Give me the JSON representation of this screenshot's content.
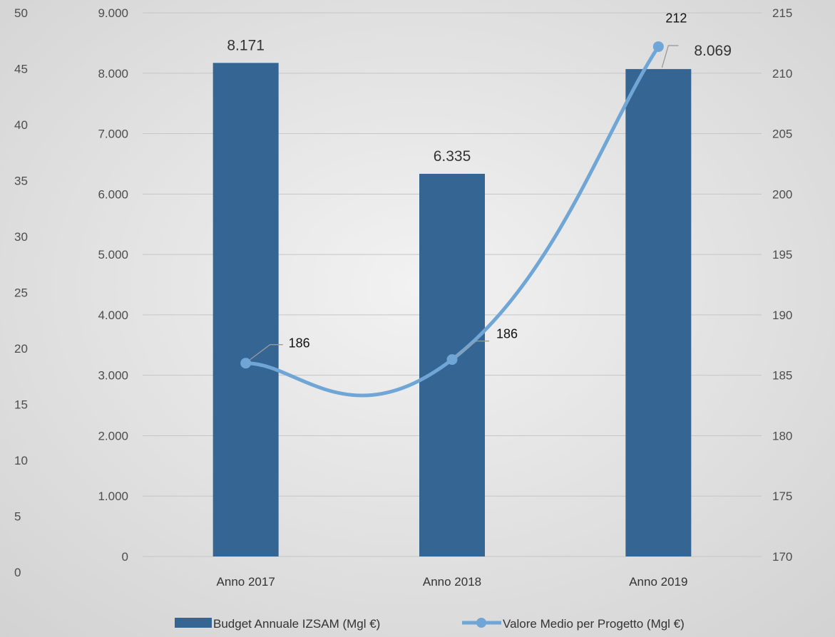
{
  "chart_data": {
    "type": "bar",
    "categories": [
      "Anno 2017",
      "Anno 2018",
      "Anno 2019"
    ],
    "series": [
      {
        "name": "Budget Annuale IZSAM (Mgl €)",
        "kind": "bar",
        "axis": "primary",
        "values": [
          8171,
          6335,
          8069
        ],
        "value_labels": [
          "8.171",
          "6.335",
          "8.069"
        ],
        "color": "#346593"
      },
      {
        "name": "Valore Medio per Progetto (Mgl €)",
        "kind": "line",
        "axis": "secondary",
        "smooth": true,
        "values": [
          186,
          186.3,
          212.2
        ],
        "value_labels": [
          "186",
          "186",
          "212"
        ],
        "color": "#6fa6d6"
      }
    ],
    "axes": {
      "outer_left": {
        "ticks": [
          0,
          5,
          10,
          15,
          20,
          25,
          30,
          35,
          40,
          45,
          50
        ],
        "labels": [
          "0",
          "5",
          "10",
          "15",
          "20",
          "25",
          "30",
          "35",
          "40",
          "45",
          "50"
        ],
        "range": [
          0,
          50
        ]
      },
      "primary": {
        "ticks": [
          0,
          1000,
          2000,
          3000,
          4000,
          5000,
          6000,
          7000,
          8000,
          9000
        ],
        "labels": [
          "0",
          "1.000",
          "2.000",
          "3.000",
          "4.000",
          "5.000",
          "6.000",
          "7.000",
          "8.000",
          "9.000"
        ],
        "range": [
          0,
          9000
        ]
      },
      "secondary": {
        "ticks": [
          170,
          175,
          180,
          185,
          190,
          195,
          200,
          205,
          210,
          215
        ],
        "labels": [
          "170",
          "175",
          "180",
          "185",
          "190",
          "195",
          "200",
          "205",
          "210",
          "215"
        ],
        "range": [
          170,
          215
        ]
      }
    },
    "grid": true,
    "legend": "bottom"
  }
}
